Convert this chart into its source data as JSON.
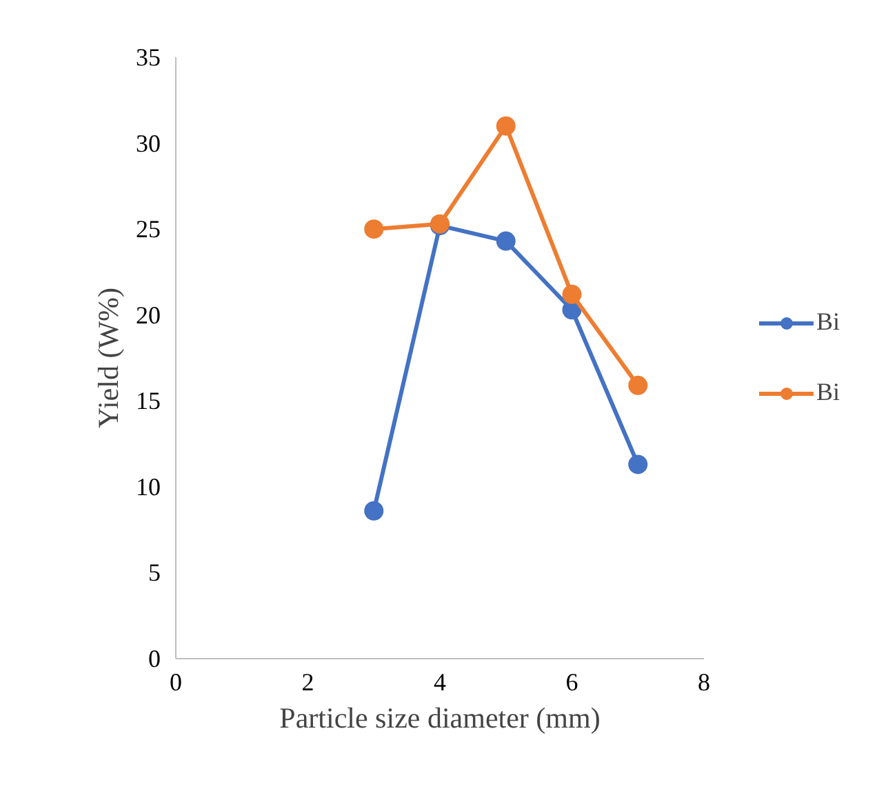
{
  "chart_data": {
    "type": "line",
    "xlabel": "Particle size diameter (mm)",
    "ylabel": "Yield (W%)",
    "x": [
      3,
      4,
      5,
      6,
      7
    ],
    "series": [
      {
        "name": "Bi",
        "color": "#4472c4",
        "values": [
          8.6,
          25.2,
          24.3,
          20.3,
          11.3
        ]
      },
      {
        "name": "Bi",
        "color": "#ed7d31",
        "values": [
          25.0,
          25.3,
          31.0,
          21.2,
          15.9
        ]
      }
    ],
    "xlim": [
      0,
      8
    ],
    "xticks": [
      0,
      2,
      4,
      6,
      8
    ],
    "ylim": [
      0,
      35
    ],
    "yticks": [
      0,
      5,
      10,
      15,
      20,
      25,
      30,
      35
    ],
    "grid": false,
    "legend": "right",
    "marker": "circle",
    "line_style": "solid"
  }
}
